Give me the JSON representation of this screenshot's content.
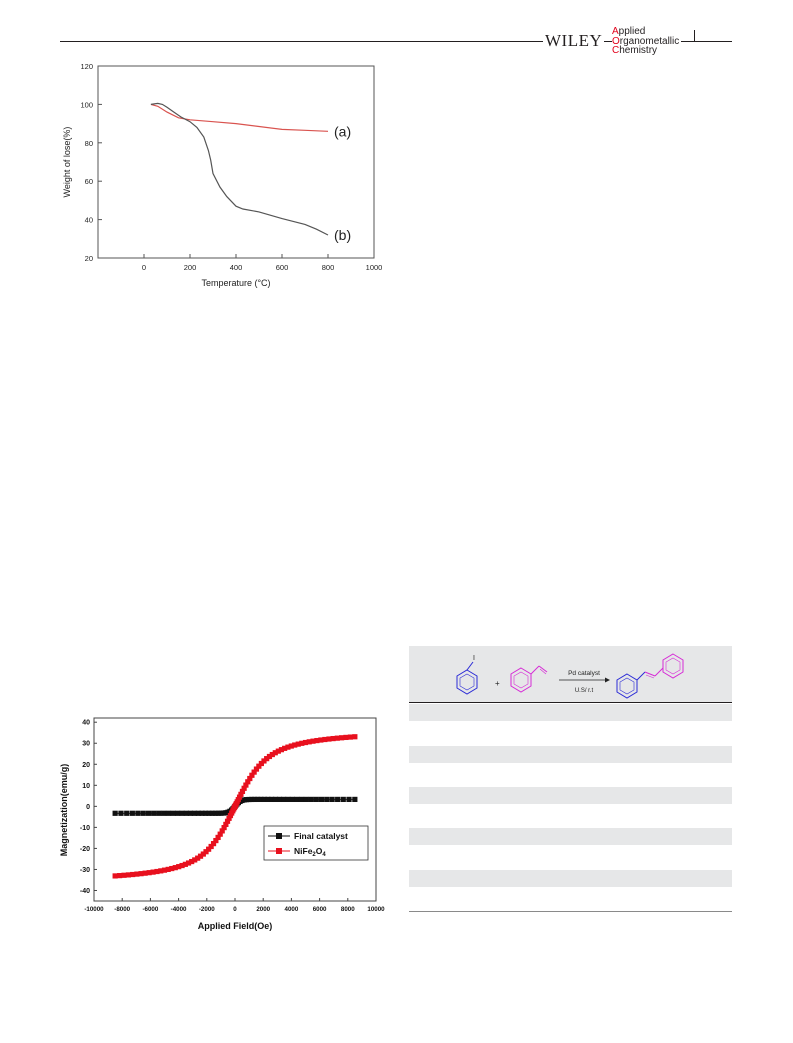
{
  "header": {
    "publisher": "WILEY",
    "journal_lines": [
      "Applied",
      "Organometallic",
      "Chemistry"
    ],
    "journal_first_letter_color": "#e2001a"
  },
  "chart_data": [
    {
      "type": "line",
      "title": "",
      "xlabel": "Temperature (°C)",
      "ylabel": "Weight of lose(%)",
      "xlim": [
        -200,
        1000
      ],
      "ylim": [
        20,
        120
      ],
      "xticks": [
        0,
        200,
        400,
        600,
        800,
        1000
      ],
      "yticks": [
        20,
        40,
        60,
        80,
        100,
        120
      ],
      "grid": false,
      "series": [
        {
          "name": "(a)",
          "color": "#d9534f",
          "x": [
            30,
            60,
            100,
            150,
            200,
            300,
            400,
            500,
            600,
            700,
            800
          ],
          "y": [
            100,
            99,
            96,
            93,
            92,
            91,
            90,
            88.5,
            87,
            86.5,
            86
          ]
        },
        {
          "name": "(b)",
          "color": "#555555",
          "x": [
            30,
            60,
            80,
            100,
            130,
            160,
            200,
            230,
            260,
            280,
            290,
            300,
            330,
            360,
            400,
            430,
            500,
            600,
            700,
            750,
            800
          ],
          "y": [
            100,
            100.5,
            100,
            98.5,
            96,
            93.5,
            91,
            88,
            83,
            76,
            71,
            64,
            57,
            52,
            47,
            45.5,
            44,
            40.5,
            37.5,
            35,
            32
          ]
        }
      ]
    },
    {
      "type": "scatter",
      "title": "",
      "xlabel": "Applied Field(Oe)",
      "ylabel": "Magnetization(emu/g)",
      "xlim": [
        -10000,
        10000
      ],
      "ylim": [
        -45,
        42
      ],
      "xticks": [
        -10000,
        -8000,
        -6000,
        -4000,
        -2000,
        0,
        2000,
        4000,
        6000,
        8000,
        10000
      ],
      "yticks": [
        -40,
        -30,
        -20,
        -10,
        0,
        10,
        20,
        30,
        40
      ],
      "grid": false,
      "legend_position": "bottom-right",
      "legend": [
        "Final catalyst",
        "NiFe2O4"
      ],
      "series": [
        {
          "name": "Final catalyst",
          "color": "#111111",
          "marker": "square",
          "model": "tanh",
          "ms": 3.3,
          "h0": 400,
          "n": 66
        },
        {
          "name": "NiFe2O4",
          "color": "#e8101e",
          "marker": "square",
          "model": "langevin",
          "ms": 37,
          "h0": 900,
          "n": 86
        }
      ]
    }
  ],
  "scheme": {
    "reagent_iodo": "I",
    "plus": "+",
    "catalyst": "Pd catalyst",
    "conditions": "U.S/ r.t",
    "color_iodobenzene": "#2b2bd6",
    "color_styrene": "#d62bd6",
    "color_product_left": "#2b2bd6",
    "color_product_right": "#d62bd6"
  }
}
